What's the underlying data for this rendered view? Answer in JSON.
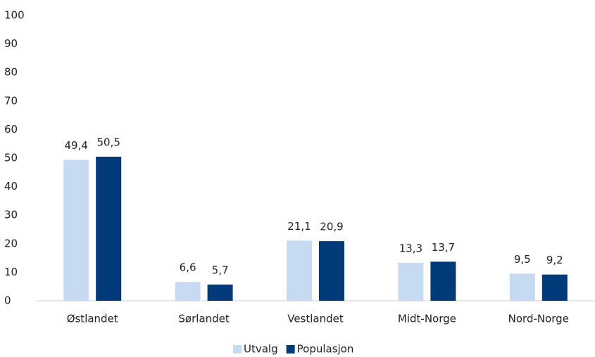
{
  "chart_data": {
    "type": "bar",
    "categories": [
      "Østlandet",
      "Sørlandet",
      "Vestlandet",
      "Midt-Norge",
      "Nord-Norge"
    ],
    "series": [
      {
        "name": "Utvalg",
        "color": "#c6dbf2",
        "values": [
          49.4,
          6.6,
          21.1,
          13.3,
          9.5
        ],
        "value_labels": [
          "49,4",
          "6,6",
          "21,1",
          "13,3",
          "9,5"
        ]
      },
      {
        "name": "Populasjon",
        "color": "#003a78",
        "values": [
          50.5,
          5.7,
          20.9,
          13.7,
          9.2
        ],
        "value_labels": [
          "50,5",
          "5,7",
          "20,9",
          "13,7",
          "9,2"
        ]
      }
    ],
    "ylim": [
      0,
      100
    ],
    "yticks": [
      0,
      10,
      20,
      30,
      40,
      50,
      60,
      70,
      80,
      90,
      100
    ],
    "grid": false,
    "legend": "bottom"
  }
}
